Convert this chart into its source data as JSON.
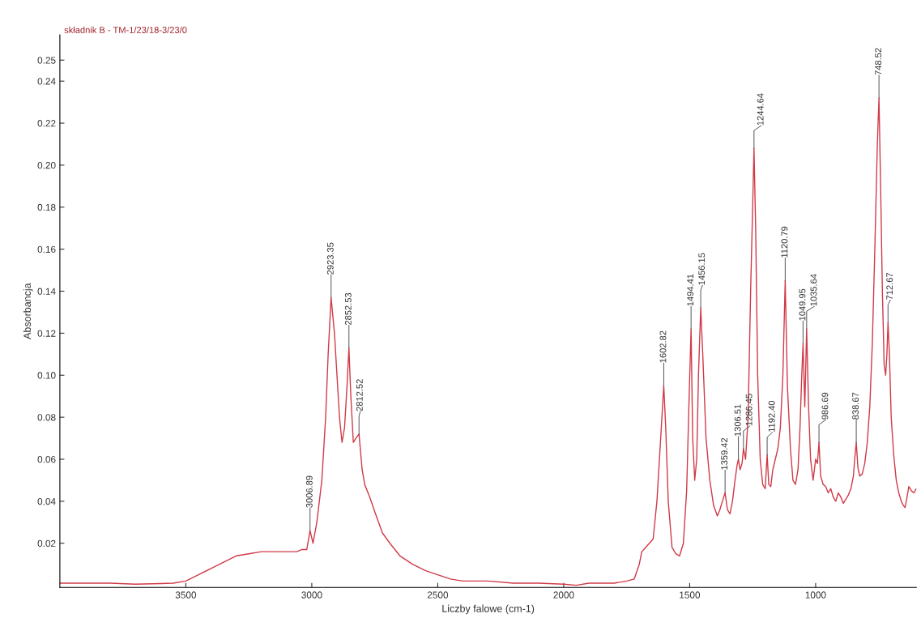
{
  "chart_data": {
    "type": "line",
    "title": "składnik B - TM-1/23/18-3/23/0",
    "xlabel": "Liczby falowe (cm-1)",
    "ylabel": "Absorbancja",
    "xlim": [
      4000,
      600
    ],
    "xticks": [
      3500,
      3000,
      2500,
      2000,
      1500,
      1000
    ],
    "ylim": [
      -0.001,
      0.262
    ],
    "yticks": [
      0.02,
      0.04,
      0.06,
      0.08,
      {
        "value": 0.1,
        "label": "0.10"
      },
      0.12,
      0.14,
      0.16,
      0.18,
      {
        "value": 0.2,
        "label": "0.20"
      },
      0.22,
      0.24,
      0.25
    ],
    "grid": false,
    "series": [
      {
        "color": "#d03a48",
        "x": [
          4000,
          3900,
          3800,
          3700,
          3600,
          3550,
          3500,
          3450,
          3400,
          3350,
          3300,
          3250,
          3200,
          3150,
          3100,
          3060,
          3040,
          3020,
          3006.89,
          2995,
          2980,
          2960,
          2945,
          2935,
          2923.35,
          2910,
          2900,
          2890,
          2880,
          2870,
          2860,
          2852.53,
          2845,
          2835,
          2825,
          2812.52,
          2800,
          2790,
          2770,
          2750,
          2720,
          2690,
          2650,
          2600,
          2550,
          2500,
          2450,
          2400,
          2300,
          2200,
          2100,
          2000,
          1950,
          1900,
          1800,
          1750,
          1720,
          1700,
          1690,
          1675,
          1660,
          1645,
          1630,
          1615,
          1602.82,
          1595,
          1585,
          1570,
          1555,
          1540,
          1525,
          1512,
          1502,
          1494.41,
          1488,
          1480,
          1472,
          1465,
          1456.15,
          1448,
          1435,
          1420,
          1405,
          1390,
          1380,
          1370,
          1359.42,
          1350,
          1340,
          1330,
          1320,
          1312,
          1306.51,
          1300,
          1292,
          1286.45,
          1278,
          1268,
          1258,
          1250,
          1244.64,
          1238,
          1230,
          1220,
          1210,
          1200,
          1196,
          1192.4,
          1186,
          1178,
          1170,
          1160,
          1150,
          1140,
          1130,
          1120.79,
          1112,
          1100,
          1090,
          1080,
          1070,
          1062,
          1055,
          1049.95,
          1043,
          1035.64,
          1028,
          1020,
          1010,
          1000,
          993,
          986.69,
          980,
          970,
          960,
          950,
          940,
          930,
          920,
          910,
          900,
          890,
          880,
          870,
          860,
          850,
          845,
          838.67,
          832,
          825,
          815,
          805,
          795,
          785,
          775,
          765,
          755,
          748.52,
          742,
          735,
          728,
          722,
          717,
          712.67,
          707,
          700,
          690,
          680,
          670,
          660,
          652,
          645,
          640,
          630,
          620,
          610,
          600
        ],
        "values": [
          0.001,
          0.001,
          0.001,
          0.0005,
          0.0008,
          0.001,
          0.002,
          0.005,
          0.008,
          0.011,
          0.014,
          0.015,
          0.016,
          0.016,
          0.016,
          0.016,
          0.017,
          0.017,
          0.026,
          0.02,
          0.03,
          0.05,
          0.08,
          0.11,
          0.137,
          0.12,
          0.1,
          0.08,
          0.068,
          0.075,
          0.095,
          0.113,
          0.09,
          0.068,
          0.07,
          0.072,
          0.055,
          0.048,
          0.042,
          0.035,
          0.025,
          0.02,
          0.014,
          0.01,
          0.007,
          0.005,
          0.003,
          0.002,
          0.002,
          0.001,
          0.001,
          0.0005,
          0.0,
          0.001,
          0.001,
          0.002,
          0.003,
          0.01,
          0.016,
          0.018,
          0.02,
          0.022,
          0.04,
          0.07,
          0.095,
          0.075,
          0.04,
          0.018,
          0.015,
          0.014,
          0.02,
          0.045,
          0.09,
          0.122,
          0.07,
          0.05,
          0.06,
          0.1,
          0.132,
          0.11,
          0.07,
          0.05,
          0.038,
          0.033,
          0.036,
          0.04,
          0.044,
          0.036,
          0.034,
          0.04,
          0.05,
          0.057,
          0.06,
          0.055,
          0.058,
          0.065,
          0.06,
          0.08,
          0.14,
          0.18,
          0.208,
          0.17,
          0.1,
          0.06,
          0.048,
          0.046,
          0.055,
          0.062,
          0.048,
          0.047,
          0.055,
          0.06,
          0.065,
          0.075,
          0.1,
          0.145,
          0.095,
          0.065,
          0.05,
          0.048,
          0.055,
          0.075,
          0.1,
          0.115,
          0.085,
          0.122,
          0.085,
          0.06,
          0.05,
          0.06,
          0.058,
          0.068,
          0.052,
          0.048,
          0.047,
          0.044,
          0.046,
          0.042,
          0.04,
          0.044,
          0.042,
          0.039,
          0.041,
          0.043,
          0.046,
          0.052,
          0.06,
          0.068,
          0.056,
          0.052,
          0.053,
          0.058,
          0.068,
          0.085,
          0.115,
          0.16,
          0.21,
          0.232,
          0.19,
          0.14,
          0.105,
          0.1,
          0.11,
          0.125,
          0.11,
          0.08,
          0.062,
          0.05,
          0.044,
          0.04,
          0.038,
          0.037,
          0.04,
          0.047,
          0.045,
          0.044,
          0.046
        ]
      }
    ],
    "annotations": [
      {
        "text": "3006.89",
        "x": 3006.89,
        "y": 0.026
      },
      {
        "text": "2923.35",
        "x": 2923.35,
        "y": 0.137
      },
      {
        "text": "2852.53",
        "x": 2852.53,
        "y": 0.113
      },
      {
        "text": "2812.52",
        "x": 2812.52,
        "y": 0.072
      },
      {
        "text": "1602.82",
        "x": 1602.82,
        "y": 0.095
      },
      {
        "text": "1494.41",
        "x": 1494.41,
        "y": 0.122
      },
      {
        "text": "1456.15",
        "x": 1456.15,
        "y": 0.132
      },
      {
        "text": "1359.42",
        "x": 1359.42,
        "y": 0.044
      },
      {
        "text": "1306.51",
        "x": 1306.51,
        "y": 0.06
      },
      {
        "text": "1286.45",
        "x": 1286.45,
        "y": 0.065
      },
      {
        "text": "1244.64",
        "x": 1244.64,
        "y": 0.208
      },
      {
        "text": "1192.40",
        "x": 1192.4,
        "y": 0.062
      },
      {
        "text": "1120.79",
        "x": 1120.79,
        "y": 0.145
      },
      {
        "text": "1049.95",
        "x": 1049.95,
        "y": 0.115
      },
      {
        "text": "1035.64",
        "x": 1035.64,
        "y": 0.122
      },
      {
        "text": "986.69",
        "x": 986.69,
        "y": 0.068
      },
      {
        "text": "838.67",
        "x": 838.67,
        "y": 0.068
      },
      {
        "text": "748.52",
        "x": 748.52,
        "y": 0.232
      },
      {
        "text": "712.67",
        "x": 712.67,
        "y": 0.125
      }
    ]
  }
}
